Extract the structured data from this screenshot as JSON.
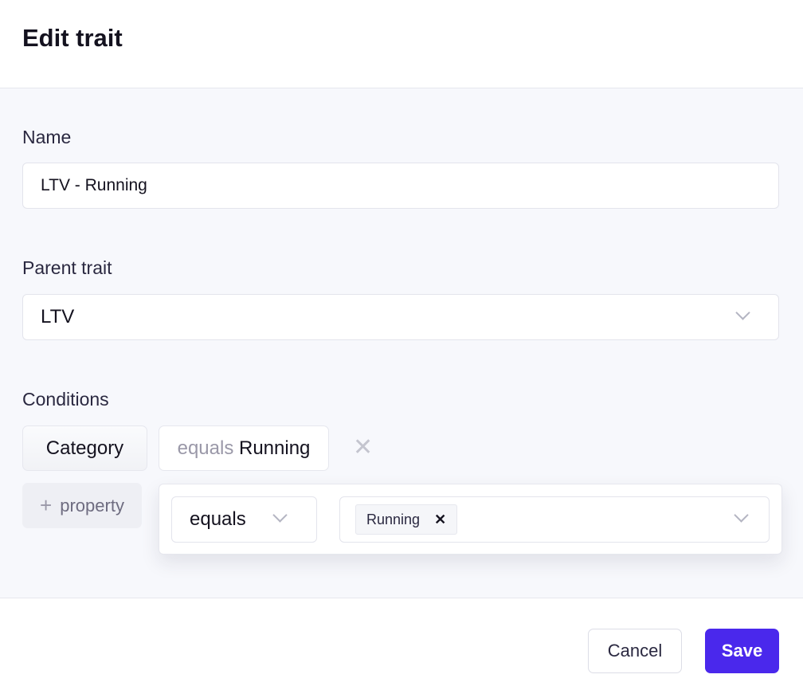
{
  "dialog": {
    "title": "Edit trait"
  },
  "name": {
    "label": "Name",
    "value": "LTV - Running"
  },
  "parent": {
    "label": "Parent trait",
    "value": "LTV"
  },
  "conditions": {
    "label": "Conditions",
    "property": "Category",
    "summary_operator": "equals",
    "summary_value": "Running",
    "add_property": "property",
    "add_icon": "plus-icon",
    "remove_icon": "close-icon",
    "popover": {
      "operator": "equals",
      "values": [
        "Running"
      ]
    }
  },
  "footer": {
    "cancel": "Cancel",
    "save": "Save"
  },
  "colors": {
    "primary": "#4a28ec",
    "background": "#f7f8fc"
  }
}
